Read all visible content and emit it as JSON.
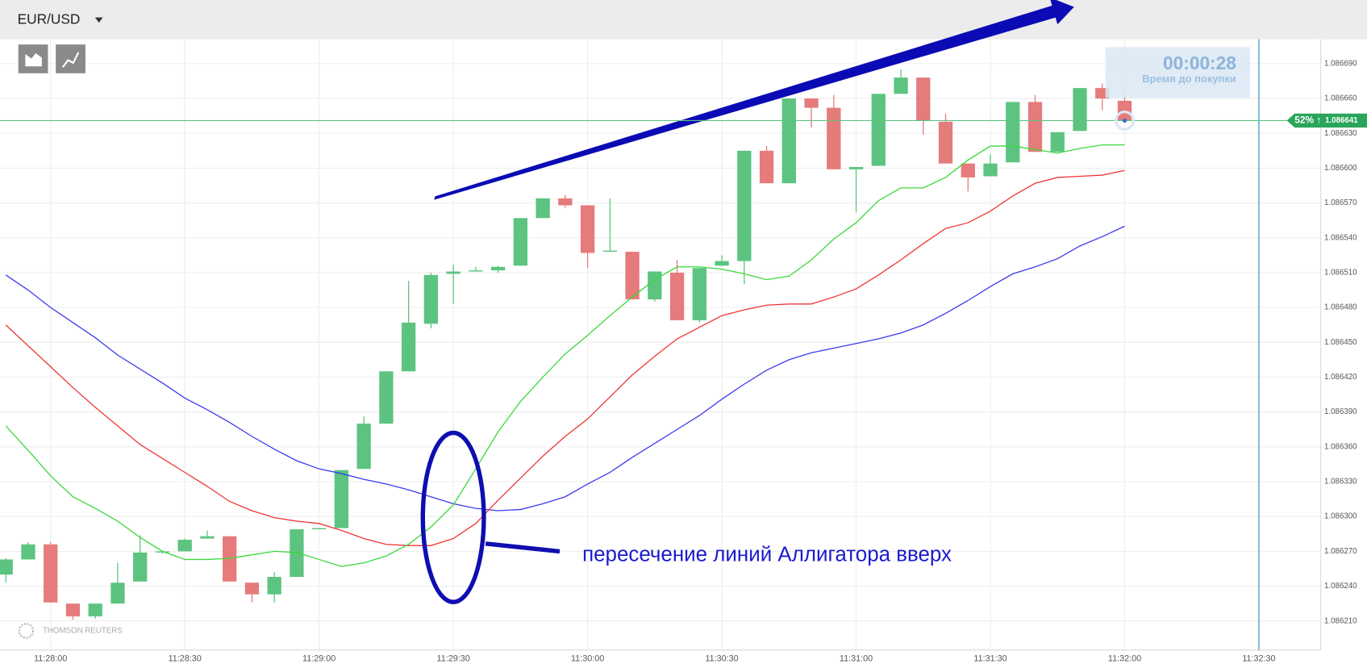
{
  "chart_data": {
    "type": "candlestick",
    "title": "EUR/USD",
    "x": [
      41270,
      41275,
      41280,
      41285,
      41290,
      41295,
      41300,
      41305,
      41310,
      41315,
      41320,
      41325,
      41330,
      41335,
      41340,
      41345,
      41350,
      41355,
      41360,
      41365,
      41370,
      41375,
      41380,
      41385,
      41390,
      41395,
      41400,
      41405,
      41410,
      41415,
      41420,
      41425,
      41430,
      41435,
      41440,
      41445,
      41450,
      41455,
      41460,
      41465,
      41470,
      41475,
      41480,
      41485,
      41490,
      41495,
      41500,
      41505,
      41510,
      41515,
      41520
    ],
    "open": [
      1.08625,
      1.086263,
      1.086276,
      1.086225,
      1.086214,
      1.086225,
      1.086244,
      1.086269,
      1.08627,
      1.086281,
      1.086283,
      1.086243,
      1.086233,
      1.086248,
      1.086289,
      1.08629,
      1.086341,
      1.08638,
      1.086425,
      1.086466,
      1.086509,
      1.086511,
      1.086512,
      1.086516,
      1.086557,
      1.086574,
      1.086568,
      1.086528,
      1.086528,
      1.086487,
      1.08651,
      1.086469,
      1.086516,
      1.08652,
      1.086615,
      1.086587,
      1.08666,
      1.086652,
      1.086599,
      1.086602,
      1.086664,
      1.086678,
      1.08664,
      1.086604,
      1.086593,
      1.086605,
      1.086657,
      1.086614,
      1.086632,
      1.086669,
      1.086658
    ],
    "high": [
      1.086264,
      1.086278,
      1.086278,
      1.086225,
      1.086225,
      1.08626,
      1.086284,
      1.08627,
      1.086281,
      1.086288,
      1.086283,
      1.086243,
      1.086252,
      1.086289,
      1.08629,
      1.08634,
      1.086386,
      1.086425,
      1.086503,
      1.08651,
      1.086517,
      1.086515,
      1.086516,
      1.086557,
      1.086574,
      1.086577,
      1.086568,
      1.086574,
      1.086528,
      1.086511,
      1.086521,
      1.086514,
      1.086525,
      1.086615,
      1.086619,
      1.08666,
      1.08666,
      1.086663,
      1.086601,
      1.086664,
      1.086685,
      1.086678,
      1.086647,
      1.086604,
      1.086612,
      1.086657,
      1.086663,
      1.086631,
      1.086669,
      1.086673,
      1.086664
    ],
    "low": [
      1.086243,
      1.086263,
      1.086226,
      1.086211,
      1.086212,
      1.086225,
      1.086244,
      1.086268,
      1.08627,
      1.086281,
      1.086244,
      1.086226,
      1.086226,
      1.086248,
      1.086289,
      1.08629,
      1.086341,
      1.08638,
      1.086425,
      1.086462,
      1.086483,
      1.086511,
      1.08651,
      1.086516,
      1.086557,
      1.086566,
      1.086514,
      1.086528,
      1.086487,
      1.086485,
      1.086469,
      1.086467,
      1.086516,
      1.0865,
      1.086587,
      1.086587,
      1.086635,
      1.086599,
      1.086562,
      1.086602,
      1.086664,
      1.086629,
      1.086604,
      1.08658,
      1.086593,
      1.086605,
      1.086614,
      1.086614,
      1.086632,
      1.08665,
      1.086641
    ],
    "close": [
      1.086263,
      1.086276,
      1.086226,
      1.086214,
      1.086225,
      1.086243,
      1.086269,
      1.08627,
      1.08628,
      1.086283,
      1.086244,
      1.086233,
      1.086248,
      1.086289,
      1.08629,
      1.08634,
      1.08638,
      1.086425,
      1.086467,
      1.086508,
      1.086511,
      1.086512,
      1.086515,
      1.086557,
      1.086574,
      1.086568,
      1.086527,
      1.086529,
      1.086487,
      1.086511,
      1.086469,
      1.086514,
      1.08652,
      1.086615,
      1.086587,
      1.08666,
      1.086652,
      1.086599,
      1.086601,
      1.086664,
      1.086678,
      1.086641,
      1.086604,
      1.086592,
      1.086604,
      1.086657,
      1.086614,
      1.086631,
      1.086669,
      1.08666,
      1.086641
    ],
    "up_color": "#5cc480",
    "down_color": "#e57b7b",
    "lines": [
      {
        "color": "#3b3bf0",
        "values": [
          1.086508,
          1.086495,
          1.08648,
          1.086467,
          1.086454,
          1.086439,
          1.086427,
          1.086415,
          1.086402,
          1.086392,
          1.086381,
          1.086369,
          1.086358,
          1.086348,
          1.086341,
          1.086337,
          1.086332,
          1.086328,
          1.086323,
          1.086317,
          1.086311,
          1.086307,
          1.086305,
          1.086306,
          1.086311,
          1.086317,
          1.086328,
          1.086338,
          1.086351,
          1.086363,
          1.086375,
          1.086387,
          1.086401,
          1.086414,
          1.086426,
          1.086435,
          1.086441,
          1.086445,
          1.086449,
          1.086453,
          1.086458,
          1.086465,
          1.086475,
          1.086486,
          1.086498,
          1.086509,
          1.086515,
          1.086522,
          1.086533,
          1.086541,
          1.08655
        ]
      },
      {
        "color": "#f03535",
        "values": [
          1.086465,
          1.086447,
          1.086429,
          1.086411,
          1.086394,
          1.086378,
          1.086362,
          1.08635,
          1.086338,
          1.086326,
          1.086313,
          1.086305,
          1.086299,
          1.086296,
          1.086294,
          1.086288,
          1.086281,
          1.086276,
          1.086275,
          1.086275,
          1.086281,
          1.086294,
          1.086314,
          1.086333,
          1.086352,
          1.086369,
          1.086384,
          1.086403,
          1.086422,
          1.086438,
          1.086453,
          1.086463,
          1.086473,
          1.086478,
          1.086482,
          1.086483,
          1.086483,
          1.086489,
          1.086496,
          1.086508,
          1.086521,
          1.086535,
          1.086548,
          1.086553,
          1.086563,
          1.086576,
          1.086587,
          1.086592,
          1.086593,
          1.086594,
          1.086598
        ]
      },
      {
        "color": "#3ad93a",
        "values": [
          1.086378,
          1.086357,
          1.086335,
          1.086317,
          1.086307,
          1.086296,
          1.086282,
          1.08627,
          1.086263,
          1.086263,
          1.086264,
          1.086267,
          1.08627,
          1.086269,
          1.086263,
          1.086257,
          1.08626,
          1.086266,
          1.086276,
          1.086291,
          1.08631,
          1.086341,
          1.086373,
          1.086399,
          1.08642,
          1.08644,
          1.086456,
          1.086473,
          1.086489,
          1.086504,
          1.086515,
          1.086515,
          1.086513,
          1.086509,
          1.086504,
          1.086507,
          1.086521,
          1.086539,
          1.086553,
          1.086572,
          1.086583,
          1.086583,
          1.086592,
          1.086607,
          1.086619,
          1.086619,
          1.086616,
          1.086613,
          1.086617,
          1.08662,
          1.08662
        ]
      }
    ],
    "xlim": [
      41268.7,
      41563.83
    ],
    "ylim": [
      1.086185,
      1.086711
    ],
    "xticks": [
      {
        "value": 41280,
        "label": "11:28:00"
      },
      {
        "value": 41310,
        "label": "11:28:30"
      },
      {
        "value": 41340,
        "label": "11:29:00"
      },
      {
        "value": 41370,
        "label": "11:29:30"
      },
      {
        "value": 41400,
        "label": "11:30:00"
      },
      {
        "value": 41430,
        "label": "11:30:30"
      },
      {
        "value": 41460,
        "label": "11:31:00"
      },
      {
        "value": 41490,
        "label": "11:31:30"
      },
      {
        "value": 41520,
        "label": "11:32:00"
      },
      {
        "value": 41550,
        "label": "11:32:30"
      }
    ],
    "yticks": [
      {
        "value": 1.08621,
        "label": "1.086210"
      },
      {
        "value": 1.08624,
        "label": "1.086240"
      },
      {
        "value": 1.08627,
        "label": "1.086270"
      },
      {
        "value": 1.0863,
        "label": "1.086300"
      },
      {
        "value": 1.08633,
        "label": "1.086330"
      },
      {
        "value": 1.08636,
        "label": "1.086360"
      },
      {
        "value": 1.08639,
        "label": "1.086390"
      },
      {
        "value": 1.08642,
        "label": "1.086420"
      },
      {
        "value": 1.08645,
        "label": "1.086450"
      },
      {
        "value": 1.08648,
        "label": "1.086480"
      },
      {
        "value": 1.08651,
        "label": "1.086510"
      },
      {
        "value": 1.08654,
        "label": "1.086540"
      },
      {
        "value": 1.08657,
        "label": "1.086570"
      },
      {
        "value": 1.0866,
        "label": "1.086600"
      },
      {
        "value": 1.08663,
        "label": "1.086630"
      },
      {
        "value": 1.08666,
        "label": "1.086660"
      },
      {
        "value": 1.08669,
        "label": "1.086690"
      }
    ],
    "grid": true,
    "current_price": 1.086641,
    "payout": "52% ↑",
    "timer": "00:00:28",
    "timer_label": "Время до покупки",
    "annotation": "пересечение линий Аллигатора вверх",
    "watermark": "THOMSON REUTERS"
  }
}
